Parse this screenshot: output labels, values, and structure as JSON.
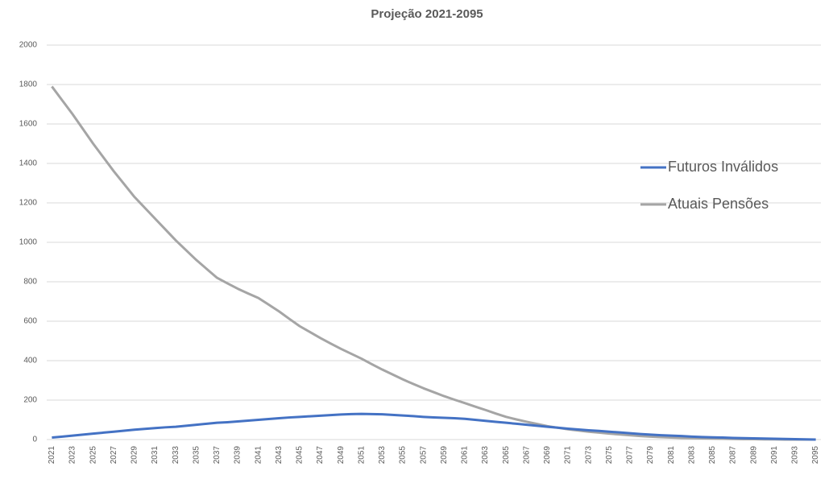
{
  "chart_data": {
    "type": "line",
    "title": "Projeção 2021-2095",
    "categories": [
      "2021",
      null,
      "2023",
      null,
      "2025",
      null,
      "2027",
      null,
      "2029",
      null,
      "2031",
      null,
      "2033",
      null,
      "2035",
      null,
      "2037",
      null,
      "2039",
      null,
      "2041",
      null,
      "2043",
      null,
      "2045",
      null,
      "2047",
      null,
      "2049",
      null,
      "2051",
      null,
      "2053",
      null,
      "2055",
      null,
      "2057",
      null,
      "2059",
      null,
      "2061",
      null,
      "2063",
      null,
      "2065",
      null,
      "2067",
      null,
      "2069",
      null,
      "2071",
      null,
      "2073",
      null,
      "2075",
      null,
      "2077",
      null,
      "2079",
      null,
      "2081",
      null,
      "2083",
      null,
      "2085",
      null,
      "2087",
      null,
      "2089",
      null,
      "2091",
      null,
      "2093",
      null,
      "2095"
    ],
    "series": [
      {
        "name": "Futuros Inválidos",
        "color": "#4472c4",
        "values": [
          10,
          15,
          20,
          25,
          30,
          35,
          40,
          45,
          50,
          54,
          58,
          62,
          65,
          70,
          75,
          80,
          85,
          88,
          92,
          96,
          100,
          104,
          108,
          112,
          115,
          118,
          121,
          124,
          127,
          129,
          130,
          129,
          128,
          125,
          122,
          119,
          115,
          112,
          110,
          108,
          105,
          100,
          95,
          90,
          85,
          80,
          75,
          70,
          65,
          60,
          55,
          51,
          47,
          44,
          40,
          36,
          32,
          28,
          25,
          22,
          20,
          18,
          15,
          13,
          11,
          10,
          8,
          7,
          6,
          5,
          4,
          3,
          2,
          1,
          0
        ]
      },
      {
        "name": "Atuais Pensões",
        "color": "#a5a5a5",
        "values": [
          1790,
          1720,
          1650,
          1575,
          1500,
          1430,
          1360,
          1295,
          1230,
          1175,
          1120,
          1065,
          1010,
          960,
          910,
          865,
          820,
          792,
          765,
          741,
          718,
          684,
          650,
          612,
          575,
          545,
          515,
          487,
          460,
          435,
          410,
          382,
          355,
          330,
          305,
          282,
          260,
          240,
          220,
          202,
          185,
          167,
          150,
          132,
          115,
          102,
          90,
          79,
          68,
          60,
          52,
          46,
          40,
          35,
          30,
          26,
          22,
          18,
          15,
          12,
          10,
          8,
          7,
          6,
          5,
          4,
          3,
          2,
          2,
          1,
          1,
          0,
          0,
          0,
          0
        ]
      }
    ],
    "ylim": [
      0,
      2000
    ],
    "yticks": [
      0,
      200,
      400,
      600,
      800,
      1000,
      1200,
      1400,
      1600,
      1800,
      2000
    ],
    "grid": true,
    "legend": "right"
  }
}
